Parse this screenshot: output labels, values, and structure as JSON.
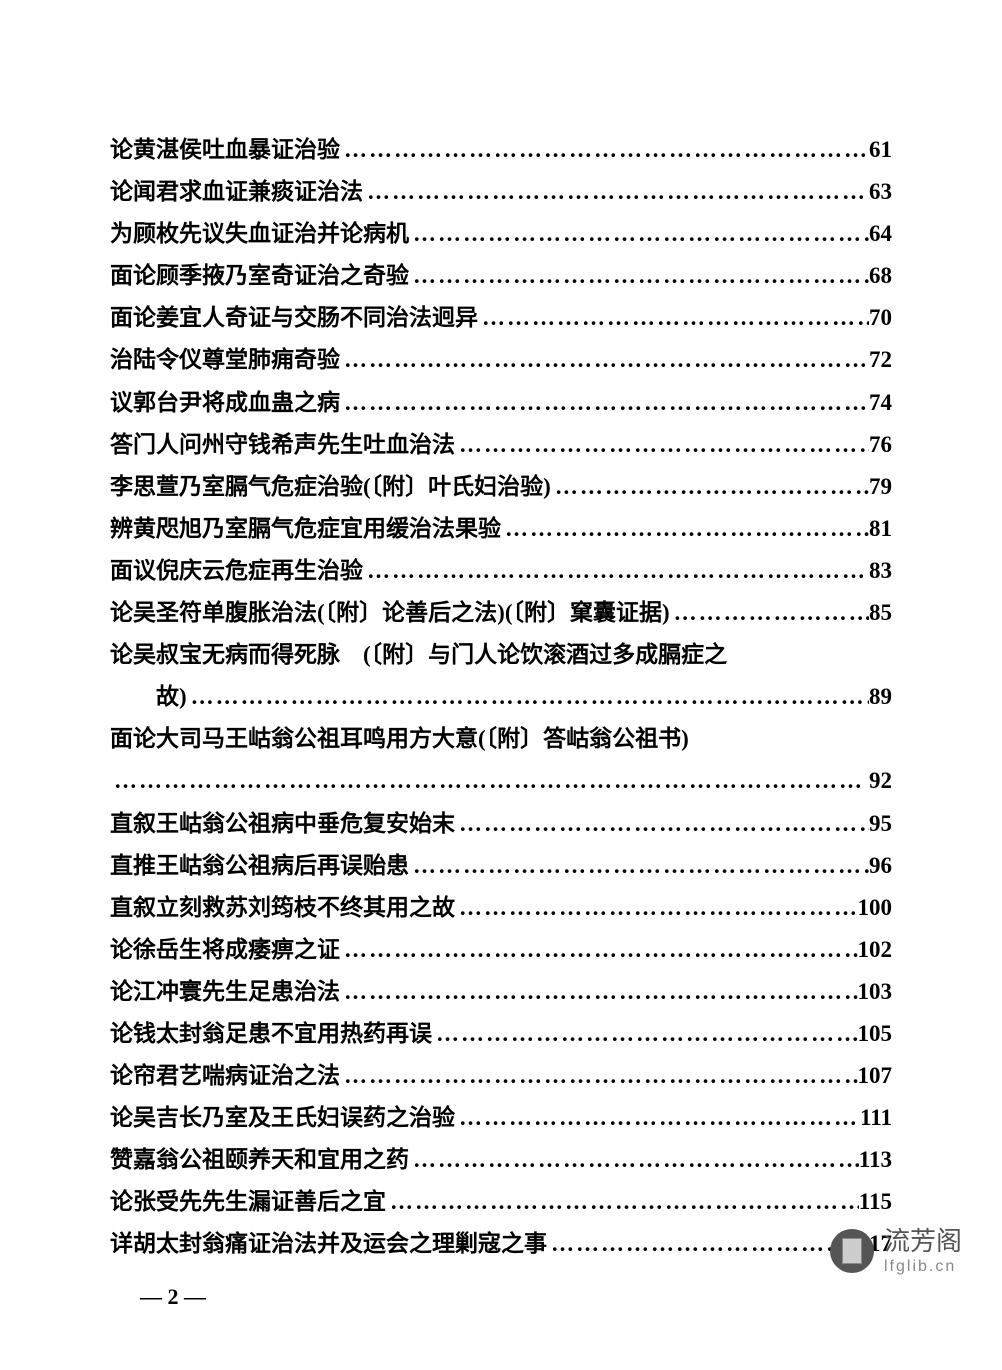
{
  "page": {
    "background_color": "#ffffff",
    "text_color": "#000000",
    "font_family": "SimSun",
    "font_size": 23,
    "page_number": "— 2 —"
  },
  "toc": [
    {
      "title": "论黄湛侯吐血暴证治验",
      "page": "61",
      "indented": false,
      "continuation": false
    },
    {
      "title": "论闻君求血证兼痰证治法",
      "page": "63",
      "indented": false,
      "continuation": false
    },
    {
      "title": "为顾枚先议失血证治并论病机",
      "page": "64",
      "indented": false,
      "continuation": false
    },
    {
      "title": "面论顾季掖乃室奇证治之奇验",
      "page": "68",
      "indented": false,
      "continuation": false
    },
    {
      "title": "面论姜宜人奇证与交肠不同治法迥异",
      "page": "70",
      "indented": false,
      "continuation": false
    },
    {
      "title": "治陆令仪尊堂肺痈奇验",
      "page": "72",
      "indented": false,
      "continuation": false
    },
    {
      "title": "议郭台尹将成血蛊之病",
      "page": "74",
      "indented": false,
      "continuation": false
    },
    {
      "title": "答门人问州守钱希声先生吐血治法",
      "page": "76",
      "indented": false,
      "continuation": false
    },
    {
      "title": "李思萱乃室膈气危症治验(〔附〕叶氏妇治验)",
      "page": "79",
      "indented": false,
      "continuation": false
    },
    {
      "title": "辨黄咫旭乃室膈气危症宜用缓治法果验",
      "page": "81",
      "indented": false,
      "continuation": false
    },
    {
      "title": "面议倪庆云危症再生治验",
      "page": "83",
      "indented": false,
      "continuation": false
    },
    {
      "title": "论吴圣符单腹胀治法(〔附〕论善后之法)(〔附〕窠囊证据)",
      "page": "85",
      "indented": false,
      "continuation": false
    },
    {
      "title": "论吴叔宝无病而得死脉　(〔附〕与门人论饮滚酒过多成膈症之",
      "page": "",
      "indented": false,
      "continuation": true
    },
    {
      "title": "故)",
      "page": "89",
      "indented": true,
      "continuation": false
    },
    {
      "title": "面论大司马王岵翁公祖耳鸣用方大意(〔附〕答岵翁公祖书)",
      "page": "",
      "indented": false,
      "continuation": true
    },
    {
      "title": "",
      "page": "92",
      "indented": false,
      "continuation": false
    },
    {
      "title": "直叙王岵翁公祖病中垂危复安始末",
      "page": "95",
      "indented": false,
      "continuation": false
    },
    {
      "title": "直推王岵翁公祖病后再误贻患",
      "page": "96",
      "indented": false,
      "continuation": false
    },
    {
      "title": "直叙立刻救苏刘筠枝不终其用之故",
      "page": "100",
      "indented": false,
      "continuation": false
    },
    {
      "title": "论徐岳生将成痿痹之证",
      "page": "102",
      "indented": false,
      "continuation": false
    },
    {
      "title": "论江冲寰先生足患治法",
      "page": "103",
      "indented": false,
      "continuation": false
    },
    {
      "title": "论钱太封翁足患不宜用热药再误",
      "page": "105",
      "indented": false,
      "continuation": false
    },
    {
      "title": "论帘君艺喘病证治之法",
      "page": "107",
      "indented": false,
      "continuation": false
    },
    {
      "title": "论吴吉长乃室及王氏妇误药之治验",
      "page": "111",
      "indented": false,
      "continuation": false
    },
    {
      "title": "赞嘉翁公祖颐养天和宜用之药",
      "page": "113",
      "indented": false,
      "continuation": false
    },
    {
      "title": "论张受先先生漏证善后之宜",
      "page": "115",
      "indented": false,
      "continuation": false
    },
    {
      "title": "详胡太封翁痛证治法并及运会之理剿寇之事",
      "page": "117",
      "indented": false,
      "continuation": false
    }
  ],
  "footer": {
    "title": "流芳阁",
    "url": "lfglib.cn",
    "title_color": "#555555",
    "url_color": "#888888"
  },
  "dots_fill": "………………………………………………………………………………"
}
